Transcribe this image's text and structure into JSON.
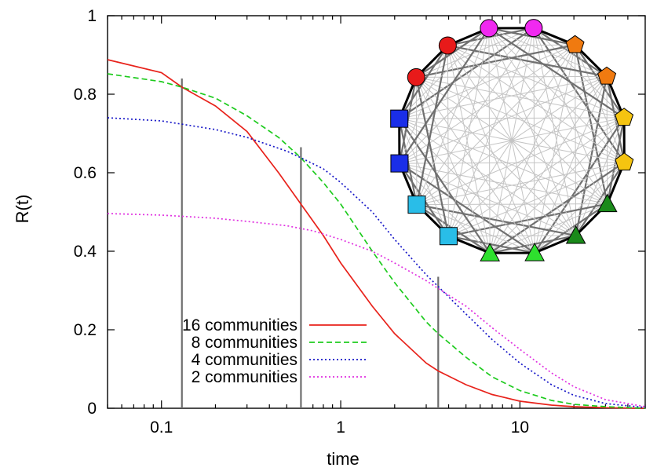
{
  "chart_data": {
    "type": "line",
    "xlabel": "time",
    "ylabel": "R(t)",
    "xscale": "log",
    "xlim": [
      0.05,
      50
    ],
    "ylim": [
      0,
      1
    ],
    "x_ticks": [
      0.1,
      1,
      10
    ],
    "x_tick_labels": [
      "0.1",
      "1",
      "10"
    ],
    "y_ticks": [
      0,
      0.2,
      0.4,
      0.6,
      0.8,
      1
    ],
    "y_tick_labels": [
      "0",
      "0.2",
      "0.4",
      "0.6",
      "0.8",
      "1"
    ],
    "legend_position": "bottom-left",
    "series": [
      {
        "name": "16 communities",
        "color": "#e8221b",
        "dash": "solid",
        "x": [
          0.05,
          0.1,
          0.13,
          0.2,
          0.3,
          0.45,
          0.6,
          0.8,
          1,
          1.5,
          2,
          3,
          3.5,
          5,
          7,
          10,
          15,
          20,
          30,
          50
        ],
        "y": [
          0.888,
          0.855,
          0.818,
          0.77,
          0.705,
          0.6,
          0.52,
          0.44,
          0.37,
          0.26,
          0.19,
          0.115,
          0.095,
          0.06,
          0.035,
          0.018,
          0.008,
          0.004,
          0.0015,
          0.0
        ]
      },
      {
        "name": "8 communities",
        "color": "#1ecb1e",
        "dash": "dashed",
        "x": [
          0.05,
          0.1,
          0.13,
          0.2,
          0.3,
          0.45,
          0.6,
          0.8,
          1,
          1.5,
          2,
          3,
          3.5,
          5,
          7,
          10,
          15,
          20,
          30,
          50
        ],
        "y": [
          0.852,
          0.832,
          0.818,
          0.79,
          0.745,
          0.69,
          0.638,
          0.575,
          0.52,
          0.4,
          0.32,
          0.22,
          0.19,
          0.13,
          0.08,
          0.045,
          0.02,
          0.01,
          0.004,
          0.0
        ]
      },
      {
        "name": "4 communities",
        "color": "#1818c8",
        "dash": "dotted",
        "x": [
          0.05,
          0.1,
          0.2,
          0.3,
          0.5,
          0.6,
          0.8,
          1,
          1.5,
          2,
          3,
          3.5,
          5,
          7,
          10,
          15,
          20,
          30,
          50
        ],
        "y": [
          0.74,
          0.732,
          0.71,
          0.69,
          0.655,
          0.638,
          0.61,
          0.575,
          0.5,
          0.43,
          0.34,
          0.31,
          0.24,
          0.175,
          0.115,
          0.06,
          0.033,
          0.012,
          0.002
        ]
      },
      {
        "name": "2 communities",
        "color": "#e030e0",
        "dash": "dotted",
        "x": [
          0.05,
          0.1,
          0.2,
          0.3,
          0.5,
          0.7,
          1,
          1.5,
          2,
          3,
          3.5,
          5,
          7,
          10,
          15,
          20,
          30,
          50
        ],
        "y": [
          0.496,
          0.492,
          0.484,
          0.476,
          0.465,
          0.452,
          0.43,
          0.4,
          0.37,
          0.325,
          0.305,
          0.26,
          0.205,
          0.15,
          0.09,
          0.055,
          0.022,
          0.004
        ]
      }
    ],
    "vertical_markers": [
      {
        "x": 0.13,
        "y_top": 0.84
      },
      {
        "x": 0.6,
        "y_top": 0.665
      },
      {
        "x": 3.5,
        "y_top": 0.335
      }
    ],
    "inset": {
      "type": "network-graph",
      "layout": "circle",
      "node_count": 16,
      "nodes": [
        {
          "shape": "circle",
          "color": "#f029f0"
        },
        {
          "shape": "pentagon",
          "color": "#f07a10"
        },
        {
          "shape": "pentagon",
          "color": "#f07a10"
        },
        {
          "shape": "pentagon",
          "color": "#f5c410"
        },
        {
          "shape": "pentagon",
          "color": "#f5c410"
        },
        {
          "shape": "triangle",
          "color": "#1a8a1a"
        },
        {
          "shape": "triangle",
          "color": "#1a8a1a"
        },
        {
          "shape": "triangle",
          "color": "#2ee02e"
        },
        {
          "shape": "triangle",
          "color": "#2ee02e"
        },
        {
          "shape": "square",
          "color": "#29bde8"
        },
        {
          "shape": "square",
          "color": "#29bde8"
        },
        {
          "shape": "square",
          "color": "#1a2ee8"
        },
        {
          "shape": "square",
          "color": "#1a2ee8"
        },
        {
          "shape": "circle",
          "color": "#e81a1a"
        },
        {
          "shape": "circle",
          "color": "#e81a1a"
        },
        {
          "shape": "circle",
          "color": "#f029f0"
        }
      ]
    }
  }
}
